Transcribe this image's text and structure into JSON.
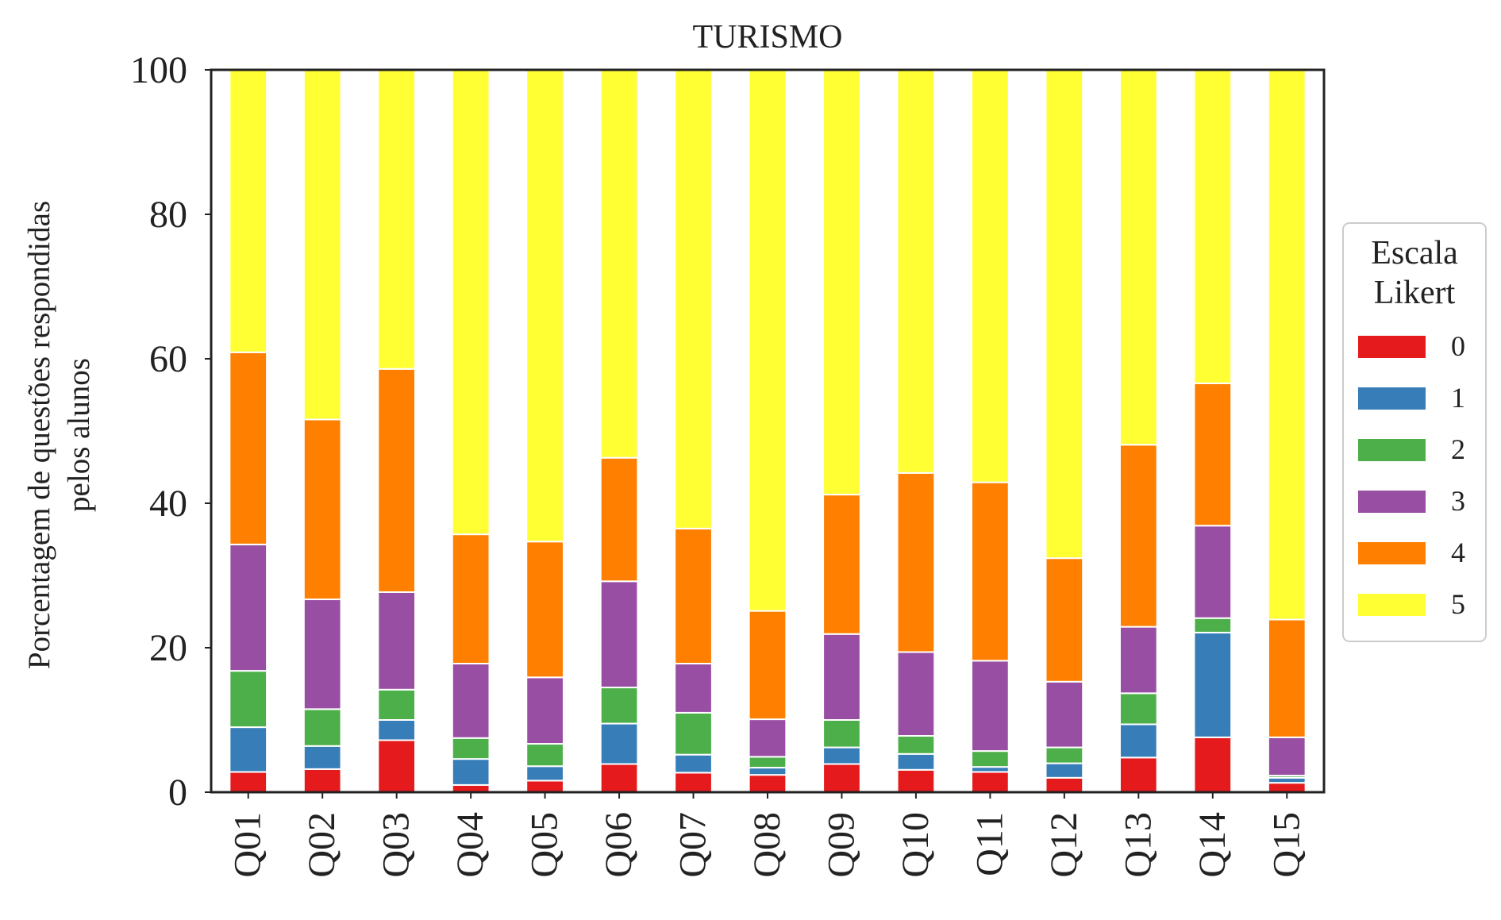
{
  "chart_data": {
    "type": "bar",
    "stacked": true,
    "title": "TURISMO",
    "ylabel_lines": [
      "Porcentagem de questões respondidas",
      "pelos alunos"
    ],
    "xlabel": "",
    "ylim": [
      0,
      100
    ],
    "yticks": [
      0,
      20,
      40,
      60,
      80,
      100
    ],
    "grid": false,
    "legend": {
      "title_lines": [
        "Escala",
        "Likert"
      ],
      "placement": "right"
    },
    "categories": [
      "Q01",
      "Q02",
      "Q03",
      "Q04",
      "Q05",
      "Q06",
      "Q07",
      "Q08",
      "Q09",
      "Q10",
      "Q11",
      "Q12",
      "Q13",
      "Q14",
      "Q15"
    ],
    "series": [
      {
        "name": "0",
        "color": "#e41a1c",
        "values": [
          2.8,
          3.2,
          7.2,
          1.0,
          1.6,
          3.9,
          2.7,
          2.4,
          3.9,
          3.1,
          2.8,
          2.0,
          4.8,
          7.6,
          1.3
        ]
      },
      {
        "name": "1",
        "color": "#377eb8",
        "values": [
          6.2,
          3.2,
          2.8,
          3.6,
          2.0,
          5.6,
          2.5,
          1.0,
          2.3,
          2.2,
          0.7,
          2.0,
          4.6,
          14.5,
          0.7
        ]
      },
      {
        "name": "2",
        "color": "#4daf4a",
        "values": [
          7.8,
          5.1,
          4.2,
          2.9,
          3.1,
          5.0,
          5.8,
          1.5,
          3.8,
          2.5,
          2.2,
          2.2,
          4.3,
          2.0,
          0.3
        ]
      },
      {
        "name": "3",
        "color": "#984ea3",
        "values": [
          17.5,
          15.2,
          13.5,
          10.3,
          9.2,
          14.7,
          6.8,
          5.2,
          11.9,
          11.6,
          12.5,
          9.1,
          9.2,
          12.8,
          5.3
        ]
      },
      {
        "name": "4",
        "color": "#ff7f00",
        "values": [
          26.6,
          24.9,
          30.9,
          17.9,
          18.8,
          17.1,
          18.7,
          15.0,
          19.3,
          24.8,
          24.7,
          17.1,
          25.2,
          19.7,
          16.3
        ]
      },
      {
        "name": "5",
        "color": "#ffff33",
        "values": [
          39.1,
          48.4,
          41.4,
          64.3,
          65.3,
          53.7,
          63.5,
          74.9,
          58.8,
          55.8,
          57.1,
          67.6,
          51.9,
          43.4,
          76.1
        ]
      }
    ]
  }
}
